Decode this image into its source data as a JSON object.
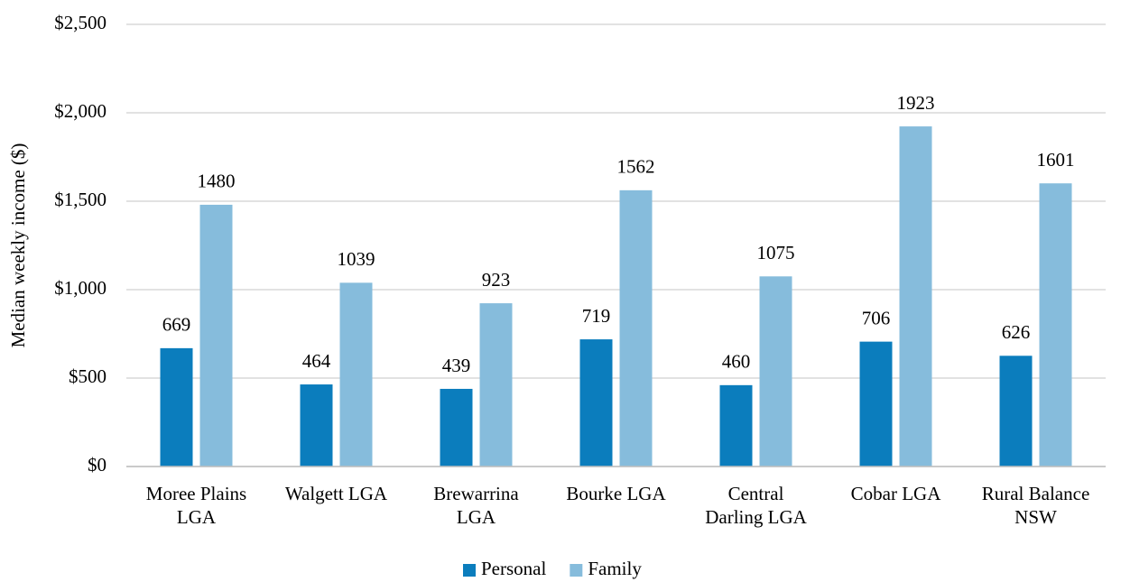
{
  "chart_data": {
    "type": "bar",
    "y_label": "Median weekly income ($)",
    "categories": [
      "Moree Plains\nLGA",
      "Walgett LGA",
      "Brewarrina\nLGA",
      "Bourke LGA",
      "Central\nDarling LGA",
      "Cobar LGA",
      "Rural Balance\nNSW"
    ],
    "series": [
      {
        "name": "Personal",
        "color": "#0b7dbd",
        "values": [
          669,
          464,
          439,
          719,
          460,
          706,
          626
        ]
      },
      {
        "name": "Family",
        "color": "#86bcdc",
        "values": [
          1480,
          1039,
          923,
          1562,
          1075,
          1923,
          1601
        ]
      }
    ],
    "ylim": [
      0,
      2500
    ],
    "yticks": [
      {
        "value": 0,
        "label": "$0"
      },
      {
        "value": 500,
        "label": "$500"
      },
      {
        "value": 1000,
        "label": "$1,000"
      },
      {
        "value": 1500,
        "label": "$1,500"
      },
      {
        "value": 2000,
        "label": "$2,000"
      },
      {
        "value": 2500,
        "label": "$2,500"
      }
    ],
    "grid": true,
    "legend": "bottom"
  }
}
